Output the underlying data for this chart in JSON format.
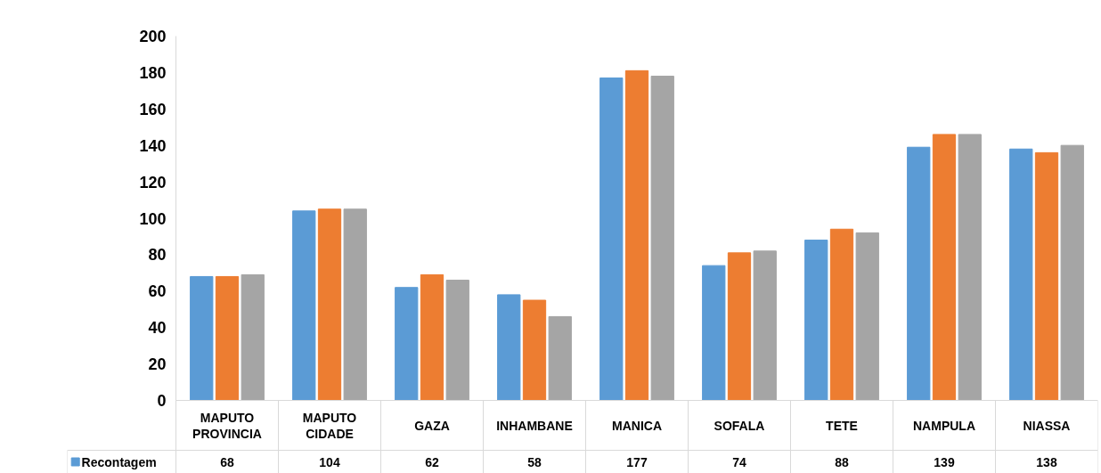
{
  "chart_data": {
    "type": "bar",
    "categories": [
      "MAPUTO PROVINCIA",
      "MAPUTO CIDADE",
      "GAZA",
      "INHAMBANE",
      "MANICA",
      "SOFALA",
      "TETE",
      "NAMPULA",
      "NIASSA"
    ],
    "series": [
      {
        "name": "Recontagem",
        "color": "#5b9bd5",
        "values": [
          68,
          104,
          62,
          58,
          177,
          74,
          88,
          139,
          138
        ],
        "value_labels": [
          "68",
          "104",
          "62",
          "58",
          "177",
          "74",
          "88",
          "139",
          "138"
        ]
      },
      {
        "color": "#ed7d31",
        "values": [
          68,
          105,
          69,
          55,
          181,
          81,
          94,
          146,
          136
        ]
      },
      {
        "color": "#a5a5a5",
        "values": [
          69,
          105,
          66,
          46,
          178,
          82,
          92,
          146,
          140
        ]
      }
    ],
    "ylim": [
      0,
      200
    ],
    "yticks": [
      0,
      20,
      40,
      60,
      80,
      100,
      120,
      140,
      160,
      180,
      200
    ],
    "grid": false
  }
}
